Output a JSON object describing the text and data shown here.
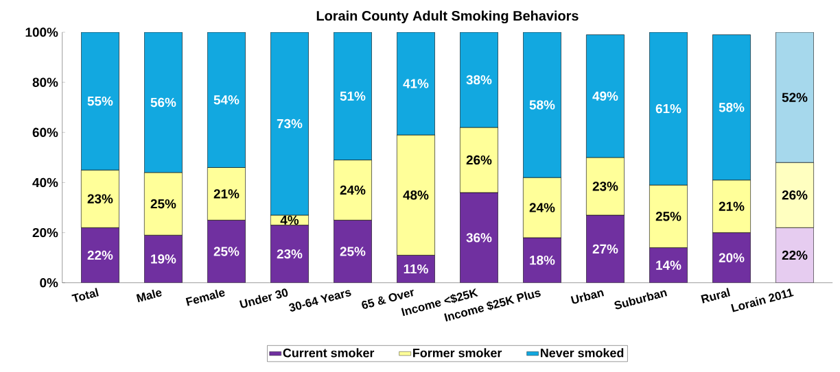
{
  "chart_data": {
    "type": "bar",
    "stacked": true,
    "title": "Lorain County Adult Smoking Behaviors",
    "categories": [
      "Total",
      "Male",
      "Female",
      "Under 30",
      "30-64 Years",
      "65 & Over",
      "Income <$25K",
      "Income $25K Plus",
      "Urban",
      "Suburban",
      "Rural",
      "Lorain 2011"
    ],
    "series": [
      {
        "name": "Current smoker",
        "color": "#7030a0",
        "colors": [
          "#7030a0",
          "#7030a0",
          "#7030a0",
          "#7030a0",
          "#7030a0",
          "#7030a0",
          "#7030a0",
          "#7030a0",
          "#7030a0",
          "#7030a0",
          "#7030a0",
          "#e6ccf0"
        ],
        "values": [
          22,
          19,
          25,
          23,
          25,
          11,
          36,
          18,
          27,
          14,
          20,
          22
        ],
        "value_labels": [
          "22%",
          "19%",
          "25%",
          "23%",
          "25%",
          "11%",
          "36%",
          "18%",
          "27%",
          "14%",
          "20%",
          "22%"
        ]
      },
      {
        "name": "Former smoker",
        "color": "#ffff99",
        "colors": [
          "#ffff99",
          "#ffff99",
          "#ffff99",
          "#ffff99",
          "#ffff99",
          "#ffff99",
          "#ffff99",
          "#ffff99",
          "#ffff99",
          "#ffff99",
          "#ffff99",
          "#ffffc0"
        ],
        "values": [
          23,
          25,
          21,
          4,
          24,
          48,
          26,
          24,
          23,
          25,
          21,
          26
        ],
        "value_labels": [
          "23%",
          "25%",
          "21%",
          "4%",
          "24%",
          "48%",
          "26%",
          "24%",
          "23%",
          "25%",
          "21%",
          "26%"
        ]
      },
      {
        "name": "Never smoked",
        "color": "#12a8e0",
        "colors": [
          "#12a8e0",
          "#12a8e0",
          "#12a8e0",
          "#12a8e0",
          "#12a8e0",
          "#12a8e0",
          "#12a8e0",
          "#12a8e0",
          "#12a8e0",
          "#12a8e0",
          "#12a8e0",
          "#a6d8ec"
        ],
        "values": [
          55,
          56,
          54,
          73,
          51,
          41,
          38,
          58,
          49,
          61,
          58,
          52
        ],
        "value_labels": [
          "55%",
          "56%",
          "54%",
          "73%",
          "51%",
          "41%",
          "38%",
          "58%",
          "49%",
          "61%",
          "58%",
          "52%"
        ]
      }
    ],
    "ylim": [
      0,
      100
    ],
    "yticks": [
      {
        "value": 0,
        "label": "0%"
      },
      {
        "value": 20,
        "label": "20%"
      },
      {
        "value": 40,
        "label": "40%"
      },
      {
        "value": 60,
        "label": "60%"
      },
      {
        "value": 80,
        "label": "80%"
      },
      {
        "value": 100,
        "label": "100%"
      }
    ],
    "legend": "bottom",
    "grid": false
  }
}
